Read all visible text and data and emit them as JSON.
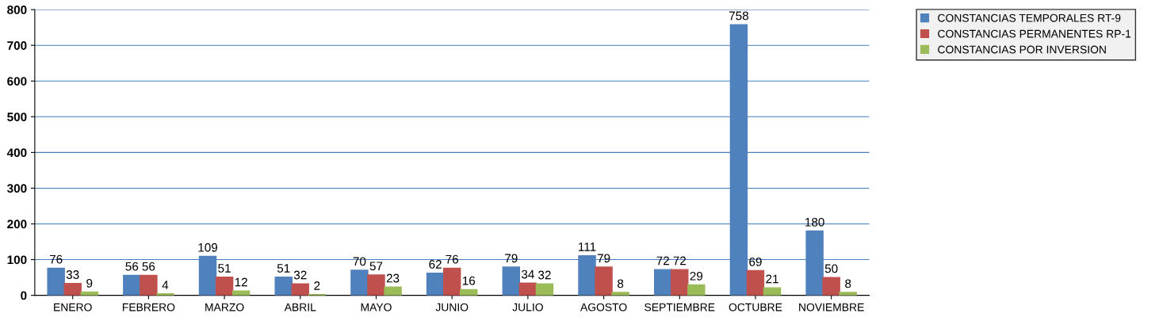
{
  "chart_data": {
    "type": "bar",
    "categories": [
      "ENERO",
      "FEBRERO",
      "MARZO",
      "ABRIL",
      "MAYO",
      "JUNIO",
      "JULIO",
      "AGOSTO",
      "SEPTIEMBRE",
      "OCTUBRE",
      "NOVIEMBRE"
    ],
    "series": [
      {
        "name": "CONSTANCIAS TEMPORALES RT-9",
        "color": "#4f81bd",
        "values": [
          76,
          56,
          109,
          51,
          70,
          62,
          79,
          111,
          72,
          758,
          180
        ]
      },
      {
        "name": "CONSTANCIAS PERMANENTES RP-1",
        "color": "#c0504d",
        "values": [
          33,
          56,
          51,
          32,
          57,
          76,
          34,
          79,
          72,
          69,
          50
        ]
      },
      {
        "name": "CONSTANCIAS POR INVERSION",
        "color": "#9bbb59",
        "values": [
          9,
          4,
          12,
          2,
          23,
          16,
          32,
          8,
          29,
          21,
          8
        ]
      }
    ],
    "ylim": [
      0,
      800
    ],
    "yticks": [
      0,
      100,
      200,
      300,
      400,
      500,
      600,
      700,
      800
    ],
    "grid": "y",
    "legend": "top right",
    "data_labels": true
  }
}
